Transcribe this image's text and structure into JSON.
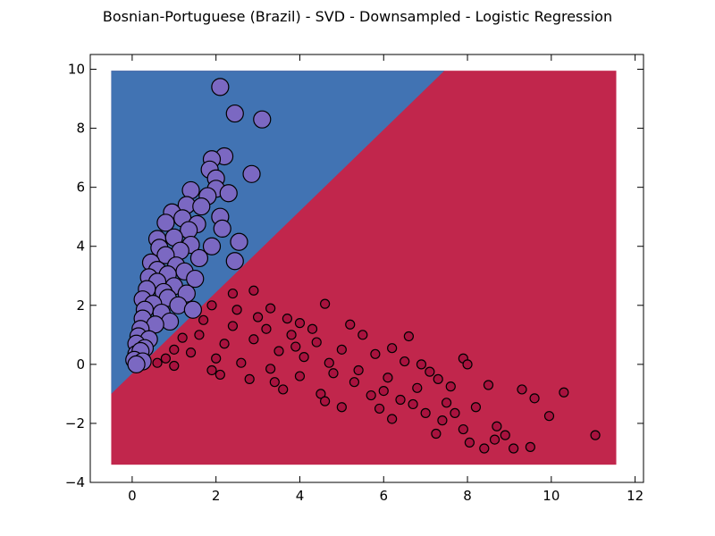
{
  "chart_data": {
    "type": "scatter",
    "title": "Bosnian-Portuguese (Brazil) - SVD - Downsampled - Logistic Regression",
    "xlabel": "",
    "ylabel": "",
    "xlim": [
      -1,
      12.2
    ],
    "ylim": [
      -4,
      10.5
    ],
    "x_ticks": [
      "0",
      "2",
      "4",
      "6",
      "8",
      "10",
      "12"
    ],
    "x_tick_values": [
      0,
      2,
      4,
      6,
      8,
      10,
      12
    ],
    "y_ticks": [
      "−4",
      "−2",
      "0",
      "2",
      "4",
      "6",
      "8",
      "10"
    ],
    "y_tick_values": [
      -4,
      -2,
      0,
      2,
      4,
      6,
      8,
      10
    ],
    "grid": false,
    "legend": "none",
    "decision_regions": {
      "domain_x": [
        -0.5,
        11.55
      ],
      "domain_y": [
        -3.4,
        9.95
      ],
      "boundary_line": [
        [
          -0.5,
          -1.0
        ],
        [
          7.45,
          9.95
        ]
      ],
      "upper_left_color": "#4173b3",
      "lower_right_color": "#c1264c"
    },
    "series": [
      {
        "color": "#7b68c2",
        "marker_size": "large",
        "points": [
          [
            2.1,
            9.4
          ],
          [
            2.45,
            8.5
          ],
          [
            3.1,
            8.3
          ],
          [
            2.2,
            7.05
          ],
          [
            1.9,
            6.95
          ],
          [
            2.85,
            6.45
          ],
          [
            1.85,
            6.6
          ],
          [
            2.0,
            6.3
          ],
          [
            1.4,
            5.9
          ],
          [
            2.0,
            5.95
          ],
          [
            2.3,
            5.8
          ],
          [
            1.8,
            5.7
          ],
          [
            1.3,
            5.4
          ],
          [
            1.65,
            5.35
          ],
          [
            0.95,
            5.15
          ],
          [
            1.2,
            4.95
          ],
          [
            2.1,
            5.0
          ],
          [
            0.8,
            4.8
          ],
          [
            1.55,
            4.75
          ],
          [
            2.15,
            4.6
          ],
          [
            1.35,
            4.55
          ],
          [
            0.6,
            4.25
          ],
          [
            1.0,
            4.3
          ],
          [
            1.4,
            4.05
          ],
          [
            2.55,
            4.15
          ],
          [
            0.65,
            3.95
          ],
          [
            1.9,
            4.0
          ],
          [
            1.15,
            3.85
          ],
          [
            0.8,
            3.7
          ],
          [
            1.6,
            3.6
          ],
          [
            2.45,
            3.5
          ],
          [
            0.45,
            3.45
          ],
          [
            1.05,
            3.35
          ],
          [
            0.6,
            3.2
          ],
          [
            1.25,
            3.15
          ],
          [
            0.85,
            3.05
          ],
          [
            0.4,
            2.95
          ],
          [
            1.5,
            2.9
          ],
          [
            0.6,
            2.8
          ],
          [
            1.0,
            2.65
          ],
          [
            0.35,
            2.55
          ],
          [
            0.75,
            2.45
          ],
          [
            1.3,
            2.4
          ],
          [
            0.25,
            2.2
          ],
          [
            0.85,
            2.25
          ],
          [
            0.5,
            2.05
          ],
          [
            1.1,
            2.0
          ],
          [
            0.3,
            1.85
          ],
          [
            0.7,
            1.75
          ],
          [
            1.45,
            1.85
          ],
          [
            0.25,
            1.55
          ],
          [
            0.9,
            1.45
          ],
          [
            0.55,
            1.35
          ],
          [
            0.2,
            1.2
          ],
          [
            0.15,
            0.95
          ],
          [
            0.4,
            0.85
          ],
          [
            0.1,
            0.7
          ],
          [
            0.3,
            0.55
          ],
          [
            0.1,
            0.35
          ],
          [
            0.2,
            0.45
          ],
          [
            0.05,
            0.15
          ],
          [
            0.25,
            0.1
          ],
          [
            0.1,
            0.0
          ]
        ]
      },
      {
        "color": "#a8123e",
        "marker_size": "small",
        "points": [
          [
            2.4,
            2.4
          ],
          [
            2.9,
            2.5
          ],
          [
            4.6,
            2.05
          ],
          [
            3.3,
            1.9
          ],
          [
            5.2,
            1.35
          ],
          [
            4.0,
            1.4
          ],
          [
            1.7,
            1.5
          ],
          [
            1.9,
            2.0
          ],
          [
            2.5,
            1.85
          ],
          [
            6.6,
            0.95
          ],
          [
            7.9,
            0.2
          ],
          [
            8.0,
            0.0
          ],
          [
            8.5,
            -0.7
          ],
          [
            9.3,
            -0.85
          ],
          [
            9.6,
            -1.15
          ],
          [
            10.3,
            -0.95
          ],
          [
            11.05,
            -2.4
          ],
          [
            9.95,
            -1.75
          ],
          [
            9.1,
            -2.85
          ],
          [
            9.5,
            -2.8
          ],
          [
            8.65,
            -2.55
          ],
          [
            8.05,
            -2.65
          ],
          [
            8.4,
            -2.85
          ],
          [
            7.9,
            -2.2
          ],
          [
            8.9,
            -2.4
          ],
          [
            8.7,
            -2.1
          ],
          [
            7.0,
            -1.65
          ],
          [
            7.4,
            -1.9
          ],
          [
            7.7,
            -1.65
          ],
          [
            7.25,
            -2.35
          ],
          [
            6.2,
            -1.85
          ],
          [
            5.0,
            -1.45
          ],
          [
            6.7,
            -1.35
          ],
          [
            6.0,
            -0.9
          ],
          [
            4.5,
            -1.0
          ],
          [
            3.6,
            -0.85
          ],
          [
            2.8,
            -0.5
          ],
          [
            1.9,
            -0.2
          ],
          [
            1.0,
            -0.05
          ],
          [
            0.6,
            0.05
          ],
          [
            3.2,
            1.2
          ],
          [
            3.8,
            1.0
          ],
          [
            4.4,
            0.75
          ],
          [
            5.0,
            0.5
          ],
          [
            5.8,
            0.35
          ],
          [
            6.5,
            0.1
          ],
          [
            7.1,
            -0.25
          ],
          [
            7.6,
            -0.75
          ],
          [
            2.2,
            0.7
          ],
          [
            2.9,
            0.85
          ],
          [
            3.5,
            0.45
          ],
          [
            4.1,
            0.25
          ],
          [
            4.7,
            0.05
          ],
          [
            5.4,
            -0.2
          ],
          [
            6.1,
            -0.45
          ],
          [
            6.8,
            -0.8
          ],
          [
            1.4,
            0.4
          ],
          [
            1.2,
            0.9
          ],
          [
            2.0,
            0.2
          ],
          [
            2.6,
            0.05
          ],
          [
            3.3,
            -0.15
          ],
          [
            4.0,
            -0.4
          ],
          [
            5.7,
            -1.05
          ],
          [
            6.4,
            -1.2
          ],
          [
            7.5,
            -1.3
          ],
          [
            8.2,
            -1.45
          ],
          [
            3.0,
            1.6
          ],
          [
            3.7,
            1.55
          ],
          [
            4.3,
            1.2
          ],
          [
            5.5,
            1.0
          ],
          [
            6.2,
            0.55
          ],
          [
            5.3,
            -0.6
          ],
          [
            4.8,
            -0.3
          ],
          [
            2.4,
            1.3
          ],
          [
            1.6,
            1.0
          ],
          [
            1.0,
            0.5
          ],
          [
            0.8,
            0.2
          ],
          [
            3.9,
            0.6
          ],
          [
            6.9,
            0.0
          ],
          [
            7.3,
            -0.5
          ],
          [
            5.9,
            -1.5
          ],
          [
            4.6,
            -1.25
          ],
          [
            3.4,
            -0.6
          ],
          [
            2.1,
            -0.35
          ]
        ]
      }
    ]
  }
}
